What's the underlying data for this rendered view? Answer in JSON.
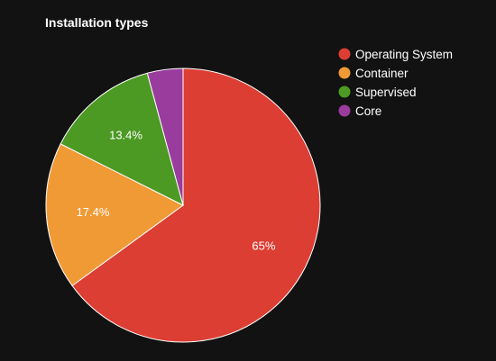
{
  "chart_data": {
    "type": "pie",
    "title": "Installation types",
    "legend_position": "top-right",
    "slices": [
      {
        "name": "Operating System",
        "value": 65.0,
        "label": "65%",
        "color": "#dc3e33"
      },
      {
        "name": "Container",
        "value": 17.4,
        "label": "17.4%",
        "color": "#f09a36"
      },
      {
        "name": "Supervised",
        "value": 13.4,
        "label": "13.4%",
        "color": "#4c9a24"
      },
      {
        "name": "Core",
        "value": 4.2,
        "label": "",
        "color": "#993c9d"
      }
    ]
  },
  "colors": {
    "background": "#121212",
    "slice_border": "#ffffff",
    "text": "#ffffff"
  }
}
